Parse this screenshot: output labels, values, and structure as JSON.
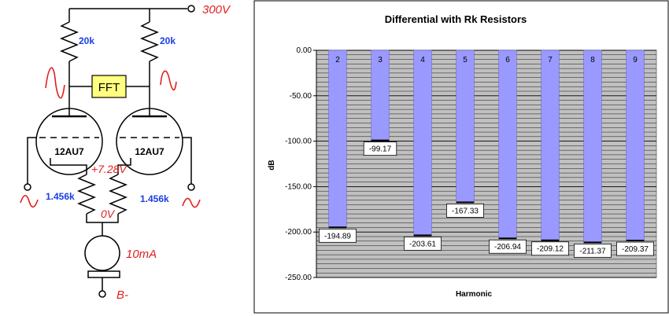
{
  "schematic": {
    "supply_label": "300V",
    "plate_resistor_left": "20k",
    "plate_resistor_right": "20k",
    "fft_label": "FFT",
    "tube_left": "12AU7",
    "tube_right": "12AU7",
    "cathode_voltage": "+7.28V",
    "cathode_resistor_left": "1.456k",
    "cathode_resistor_right": "1.456k",
    "node_voltage": "0V",
    "current_source": "10mA",
    "neg_supply": "B-"
  },
  "chart_data": {
    "type": "bar",
    "title": "Differential with Rk Resistors",
    "xlabel": "Harmonic",
    "ylabel": "dB",
    "ylim": [
      -250,
      0
    ],
    "yticks": [
      "0.00",
      "-50.00",
      "-100.00",
      "-150.00",
      "-200.00",
      "-250.00"
    ],
    "grid": true,
    "categories": [
      "2",
      "3",
      "4",
      "5",
      "6",
      "7",
      "8",
      "9"
    ],
    "values": [
      -194.89,
      -99.17,
      -203.61,
      -167.33,
      -206.94,
      -209.12,
      -211.37,
      -209.37
    ],
    "data_labels": [
      "-194.89",
      "-99.17",
      "-203.61",
      "-167.33",
      "-206.94",
      "-209.12",
      "-211.37",
      "-209.37"
    ],
    "colors": {
      "bar": "#9999ff",
      "plot_bg": "#c0c0c0",
      "grid": "#000000"
    }
  }
}
